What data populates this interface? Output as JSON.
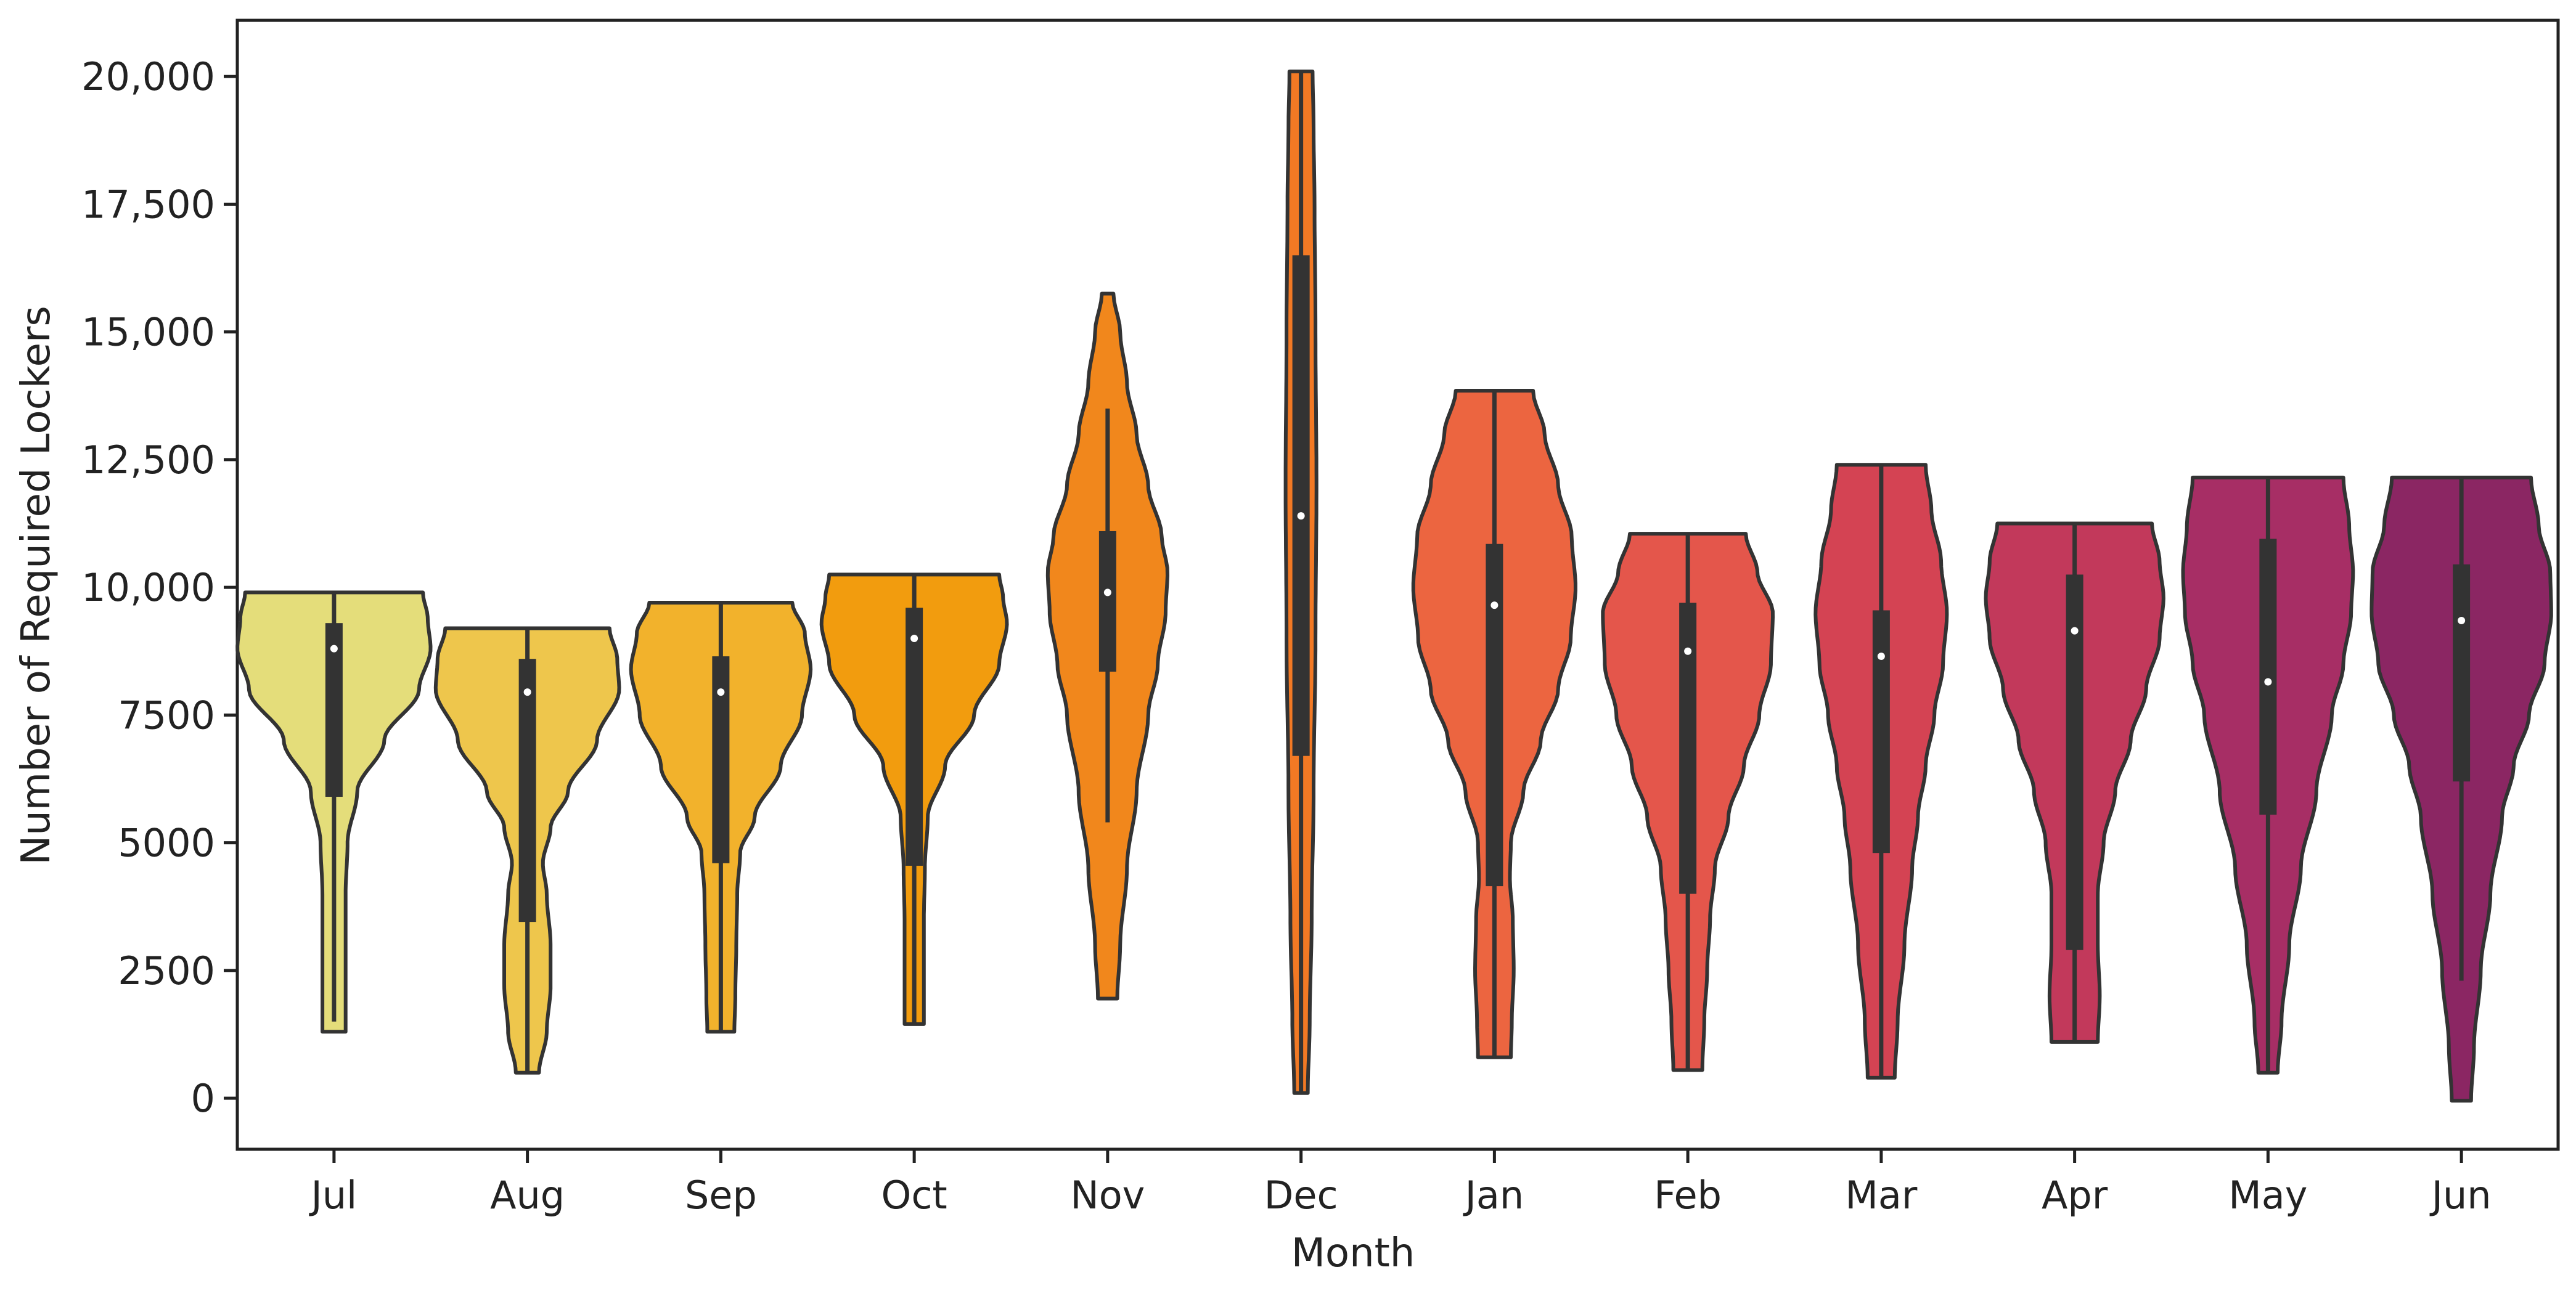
{
  "chart_data": {
    "type": "violin",
    "title": "",
    "xlabel": "Month",
    "ylabel": "Number of Required Lockers",
    "ylim": [
      -1000,
      21100
    ],
    "yticks": [
      0,
      2500,
      5000,
      7500,
      10000,
      12500,
      15000,
      17500,
      20000
    ],
    "ytick_labels": [
      "0",
      "2500",
      "5000",
      "7500",
      "10,000",
      "12,500",
      "15,000",
      "17,500",
      "20,000"
    ],
    "categories": [
      "Jul",
      "Aug",
      "Sep",
      "Oct",
      "Nov",
      "Dec",
      "Jan",
      "Feb",
      "Mar",
      "Apr",
      "May",
      "Jun"
    ],
    "series": [
      {
        "name": "Jul",
        "color": "#e4dd7a",
        "min": 1300,
        "max": 9900,
        "q1": 5900,
        "median": 8800,
        "q3": 9300,
        "whisker_low": 1500,
        "whisker_high": 9900,
        "profile": [
          [
            1300,
            0.12
          ],
          [
            2000,
            0.12
          ],
          [
            3000,
            0.12
          ],
          [
            4000,
            0.12
          ],
          [
            5000,
            0.14
          ],
          [
            6000,
            0.24
          ],
          [
            7000,
            0.52
          ],
          [
            8000,
            0.88
          ],
          [
            8800,
            1.0
          ],
          [
            9400,
            0.97
          ],
          [
            9900,
            0.92
          ]
        ]
      },
      {
        "name": "Aug",
        "color": "#eec64c",
        "min": 500,
        "max": 9200,
        "q1": 3450,
        "median": 7950,
        "q3": 8600,
        "whisker_low": 500,
        "whisker_high": 9200,
        "profile": [
          [
            500,
            0.12
          ],
          [
            1300,
            0.2
          ],
          [
            2200,
            0.24
          ],
          [
            3000,
            0.24
          ],
          [
            4000,
            0.2
          ],
          [
            4600,
            0.16
          ],
          [
            5300,
            0.24
          ],
          [
            6000,
            0.42
          ],
          [
            7000,
            0.72
          ],
          [
            8000,
            0.95
          ],
          [
            8600,
            0.93
          ],
          [
            9200,
            0.85
          ]
        ]
      },
      {
        "name": "Sep",
        "color": "#f2b22c",
        "min": 1300,
        "max": 9700,
        "q1": 4600,
        "median": 7950,
        "q3": 8650,
        "whisker_low": 1300,
        "whisker_high": 9700,
        "profile": [
          [
            1300,
            0.14
          ],
          [
            2000,
            0.15
          ],
          [
            3000,
            0.16
          ],
          [
            4000,
            0.17
          ],
          [
            4800,
            0.2
          ],
          [
            5500,
            0.35
          ],
          [
            6500,
            0.62
          ],
          [
            7500,
            0.84
          ],
          [
            8400,
            0.93
          ],
          [
            9100,
            0.87
          ],
          [
            9700,
            0.74
          ]
        ]
      },
      {
        "name": "Oct",
        "color": "#f29c0e",
        "min": 1450,
        "max": 10250,
        "q1": 4550,
        "median": 9000,
        "q3": 9600,
        "whisker_low": 1450,
        "whisker_high": 10250,
        "profile": [
          [
            1450,
            0.1
          ],
          [
            2500,
            0.1
          ],
          [
            3500,
            0.1
          ],
          [
            4500,
            0.11
          ],
          [
            5500,
            0.14
          ],
          [
            6500,
            0.32
          ],
          [
            7500,
            0.62
          ],
          [
            8500,
            0.88
          ],
          [
            9300,
            0.96
          ],
          [
            9800,
            0.92
          ],
          [
            10250,
            0.88
          ]
        ]
      },
      {
        "name": "Nov",
        "color": "#f1871c",
        "min": 1950,
        "max": 15750,
        "q1": 8350,
        "median": 9900,
        "q3": 11100,
        "whisker_low": 5400,
        "whisker_high": 13500,
        "profile": [
          [
            1950,
            0.1
          ],
          [
            3000,
            0.13
          ],
          [
            4500,
            0.2
          ],
          [
            6000,
            0.3
          ],
          [
            7500,
            0.42
          ],
          [
            8500,
            0.52
          ],
          [
            9500,
            0.6
          ],
          [
            10300,
            0.62
          ],
          [
            11000,
            0.56
          ],
          [
            12000,
            0.42
          ],
          [
            13000,
            0.3
          ],
          [
            14000,
            0.2
          ],
          [
            15000,
            0.13
          ],
          [
            15750,
            0.06
          ]
        ]
      },
      {
        "name": "Dec",
        "color": "#f27924",
        "min": 100,
        "max": 20100,
        "q1": 6700,
        "median": 11400,
        "q3": 16500,
        "whisker_low": 100,
        "whisker_high": 20100,
        "profile": [
          [
            100,
            0.07
          ],
          [
            1500,
            0.09
          ],
          [
            3500,
            0.11
          ],
          [
            6000,
            0.13
          ],
          [
            9000,
            0.15
          ],
          [
            12000,
            0.16
          ],
          [
            15000,
            0.15
          ],
          [
            17500,
            0.14
          ],
          [
            19000,
            0.13
          ],
          [
            20100,
            0.12
          ]
        ]
      },
      {
        "name": "Jan",
        "color": "#ec6540",
        "min": 800,
        "max": 13850,
        "q1": 4150,
        "median": 9650,
        "q3": 10850,
        "whisker_low": 800,
        "whisker_high": 13850,
        "profile": [
          [
            800,
            0.17
          ],
          [
            1500,
            0.18
          ],
          [
            2500,
            0.2
          ],
          [
            3500,
            0.19
          ],
          [
            4300,
            0.16
          ],
          [
            5000,
            0.17
          ],
          [
            6000,
            0.3
          ],
          [
            7000,
            0.48
          ],
          [
            8000,
            0.66
          ],
          [
            9000,
            0.79
          ],
          [
            10000,
            0.84
          ],
          [
            11000,
            0.8
          ],
          [
            12000,
            0.66
          ],
          [
            13000,
            0.52
          ],
          [
            13850,
            0.4
          ]
        ]
      },
      {
        "name": "Feb",
        "color": "#e4564b",
        "min": 550,
        "max": 11050,
        "q1": 4000,
        "median": 8750,
        "q3": 9700,
        "whisker_low": 550,
        "whisker_high": 11050,
        "profile": [
          [
            550,
            0.15
          ],
          [
            1500,
            0.17
          ],
          [
            2500,
            0.2
          ],
          [
            3500,
            0.23
          ],
          [
            4500,
            0.28
          ],
          [
            5500,
            0.42
          ],
          [
            6500,
            0.58
          ],
          [
            7500,
            0.74
          ],
          [
            8500,
            0.86
          ],
          [
            9500,
            0.88
          ],
          [
            10300,
            0.72
          ],
          [
            11050,
            0.6
          ]
        ]
      },
      {
        "name": "Mar",
        "color": "#d44353",
        "min": 400,
        "max": 12400,
        "q1": 4800,
        "median": 8650,
        "q3": 9550,
        "whisker_low": 400,
        "whisker_high": 12400,
        "profile": [
          [
            400,
            0.14
          ],
          [
            1500,
            0.17
          ],
          [
            3000,
            0.24
          ],
          [
            4500,
            0.32
          ],
          [
            5500,
            0.38
          ],
          [
            6500,
            0.46
          ],
          [
            7500,
            0.55
          ],
          [
            8500,
            0.64
          ],
          [
            9500,
            0.68
          ],
          [
            10500,
            0.62
          ],
          [
            11500,
            0.52
          ],
          [
            12400,
            0.46
          ]
        ]
      },
      {
        "name": "Apr",
        "color": "#c2395b",
        "min": 1100,
        "max": 11250,
        "q1": 2900,
        "median": 9150,
        "q3": 10250,
        "whisker_low": 1100,
        "whisker_high": 11250,
        "profile": [
          [
            1100,
            0.24
          ],
          [
            2000,
            0.26
          ],
          [
            3000,
            0.24
          ],
          [
            4000,
            0.24
          ],
          [
            5000,
            0.3
          ],
          [
            6000,
            0.42
          ],
          [
            7000,
            0.58
          ],
          [
            8000,
            0.74
          ],
          [
            9000,
            0.88
          ],
          [
            9800,
            0.92
          ],
          [
            10500,
            0.88
          ],
          [
            11250,
            0.8
          ]
        ]
      },
      {
        "name": "May",
        "color": "#a72e65",
        "min": 500,
        "max": 12150,
        "q1": 5550,
        "median": 8150,
        "q3": 10950,
        "whisker_low": 500,
        "whisker_high": 12150,
        "profile": [
          [
            500,
            0.1
          ],
          [
            1500,
            0.14
          ],
          [
            3000,
            0.22
          ],
          [
            4500,
            0.34
          ],
          [
            6000,
            0.5
          ],
          [
            7500,
            0.66
          ],
          [
            8500,
            0.78
          ],
          [
            9500,
            0.86
          ],
          [
            10300,
            0.88
          ],
          [
            11200,
            0.84
          ],
          [
            12150,
            0.78
          ]
        ]
      },
      {
        "name": "Jun",
        "color": "#8b2663",
        "min": -50,
        "max": 12150,
        "q1": 6200,
        "median": 9350,
        "q3": 10450,
        "whisker_low": 2300,
        "whisker_high": 12150,
        "profile": [
          [
            -50,
            0.1
          ],
          [
            1000,
            0.13
          ],
          [
            2500,
            0.2
          ],
          [
            4000,
            0.3
          ],
          [
            5500,
            0.42
          ],
          [
            6500,
            0.54
          ],
          [
            7500,
            0.7
          ],
          [
            8500,
            0.86
          ],
          [
            9500,
            0.93
          ],
          [
            10300,
            0.92
          ],
          [
            11200,
            0.8
          ],
          [
            12150,
            0.72
          ]
        ]
      }
    ]
  }
}
